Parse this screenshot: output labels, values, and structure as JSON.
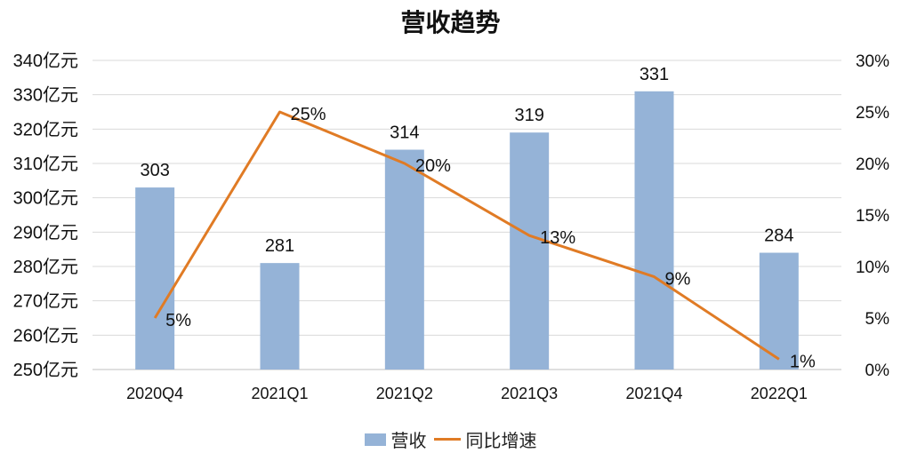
{
  "chart_data": {
    "type": "bar+line",
    "title": "营收趋势",
    "categories": [
      "2020Q4",
      "2021Q1",
      "2021Q2",
      "2021Q3",
      "2021Q4",
      "2022Q1"
    ],
    "series": [
      {
        "name": "营收",
        "type": "bar",
        "axis": "left",
        "unit": "亿元",
        "values": [
          303,
          281,
          314,
          319,
          331,
          284
        ],
        "labels": [
          "303",
          "281",
          "314",
          "319",
          "331",
          "284"
        ],
        "color": "#95B3D7"
      },
      {
        "name": "同比增速",
        "type": "line",
        "axis": "right",
        "unit": "%",
        "values": [
          5,
          25,
          20,
          13,
          9,
          1
        ],
        "labels": [
          "5%",
          "25%",
          "20%",
          "13%",
          "9%",
          "1%"
        ],
        "color": "#E07B25"
      }
    ],
    "y_left": {
      "ylim": [
        250,
        340
      ],
      "ticks": [
        "340亿元",
        "330亿元",
        "320亿元",
        "310亿元",
        "300亿元",
        "290亿元",
        "280亿元",
        "270亿元",
        "260亿元",
        "250亿元"
      ]
    },
    "y_right": {
      "ylim": [
        0,
        30
      ],
      "ticks": [
        "30%",
        "25%",
        "20%",
        "15%",
        "10%",
        "5%",
        "0%"
      ]
    },
    "xlabel": "",
    "grid": true,
    "legend_position": "bottom"
  },
  "legend": {
    "items": [
      {
        "label": "营收",
        "color": "#95B3D7"
      },
      {
        "label": "同比增速",
        "color": "#E07B25"
      }
    ]
  }
}
